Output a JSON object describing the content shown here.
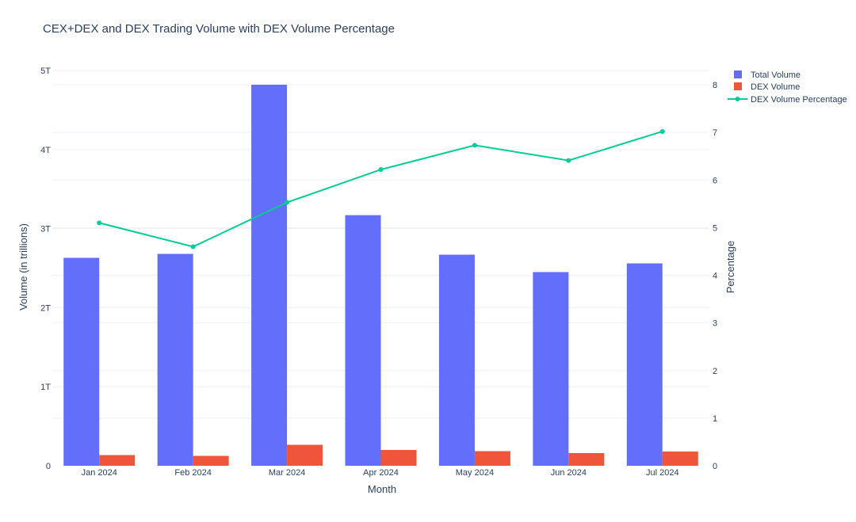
{
  "colors": {
    "total": "#636efa",
    "dex": "#ef553b",
    "pct": "#00cc96",
    "grid": "#eef1f6",
    "text": "#2a3f5f"
  },
  "chart_data": {
    "type": "bar",
    "title": "CEX+DEX and DEX Trading Volume with DEX Volume Percentage",
    "xlabel": "Month",
    "ylabel": "Volume (in trillions)",
    "y2label": "Percentage",
    "categories": [
      "Jan 2024",
      "Feb 2024",
      "Mar 2024",
      "Apr 2024",
      "May 2024",
      "Jun 2024",
      "Jul 2024"
    ],
    "ylim": [
      0,
      5
    ],
    "yticks": [
      {
        "value": 0,
        "label": "0"
      },
      {
        "value": 1,
        "label": "1T"
      },
      {
        "value": 2,
        "label": "2T"
      },
      {
        "value": 3,
        "label": "3T"
      },
      {
        "value": 4,
        "label": "4T"
      },
      {
        "value": 5,
        "label": "5T"
      }
    ],
    "y2lim": [
      0,
      8.3
    ],
    "y2ticks": [
      {
        "value": 0,
        "label": "0"
      },
      {
        "value": 1,
        "label": "1"
      },
      {
        "value": 2,
        "label": "2"
      },
      {
        "value": 3,
        "label": "3"
      },
      {
        "value": 4,
        "label": "4"
      },
      {
        "value": 5,
        "label": "5"
      },
      {
        "value": 6,
        "label": "6"
      },
      {
        "value": 7,
        "label": "7"
      },
      {
        "value": 8,
        "label": "8"
      }
    ],
    "series": [
      {
        "name": "Total Volume",
        "type": "bar",
        "axis": "y",
        "values": [
          2.63,
          2.68,
          4.82,
          3.17,
          2.67,
          2.45,
          2.56
        ]
      },
      {
        "name": "DEX Volume",
        "type": "bar",
        "axis": "y",
        "values": [
          0.135,
          0.125,
          0.265,
          0.2,
          0.185,
          0.16,
          0.18
        ]
      },
      {
        "name": "DEX Volume Percentage",
        "type": "line",
        "axis": "y2",
        "values": [
          5.1,
          4.6,
          5.53,
          6.22,
          6.73,
          6.41,
          7.02
        ]
      }
    ],
    "legend_position": "top-right"
  }
}
